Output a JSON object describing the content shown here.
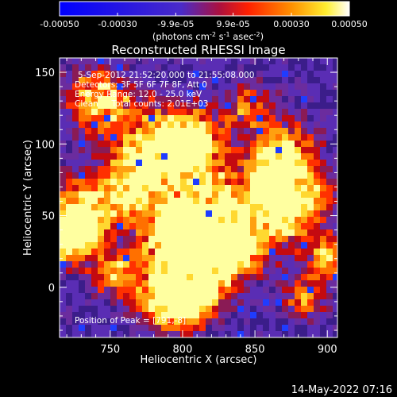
{
  "colorbar": {
    "range": [
      -0.0005,
      0.0005
    ],
    "tick_labels": [
      "-0.00050",
      "-0.00030",
      "-9.9e-05",
      "9.9e-05",
      "0.00030",
      "0.00050"
    ],
    "tick_values": [
      -0.0005,
      -0.0003,
      -9.9e-05,
      9.9e-05,
      0.0003,
      0.0005
    ],
    "unit_label_parts": [
      "(photons cm",
      "-2",
      " s",
      "-1",
      " asec",
      "-2",
      ")"
    ]
  },
  "chart_data": {
    "type": "heatmap",
    "title": "Reconstructed RHESSI Image",
    "xlabel": "Heliocentric X (arcsec)",
    "ylabel": "Heliocentric Y (arcsec)",
    "xlim": [
      715,
      907
    ],
    "ylim": [
      -35,
      160
    ],
    "xticks": [
      750,
      800,
      850,
      900
    ],
    "yticks": [
      0,
      50,
      100,
      150
    ],
    "colormap": [
      "#0000ff",
      "#5a2db4",
      "#ff0000",
      "#ff8000",
      "#ffff40",
      "#ffffff"
    ],
    "annotations": [
      "5-Sep-2012 21:52:20.000 to 21:55:08.000",
      "Detectors: 3F 5F 6F 7F 8F, Att 0",
      "Energy Range: 12.0 - 25.0 keV",
      "Clean     Total counts: 2.01E+03"
    ],
    "peak_label": "Position of Peak = [791,-8]"
  },
  "footer": {
    "timestamp": "14-May-2022 07:16"
  }
}
